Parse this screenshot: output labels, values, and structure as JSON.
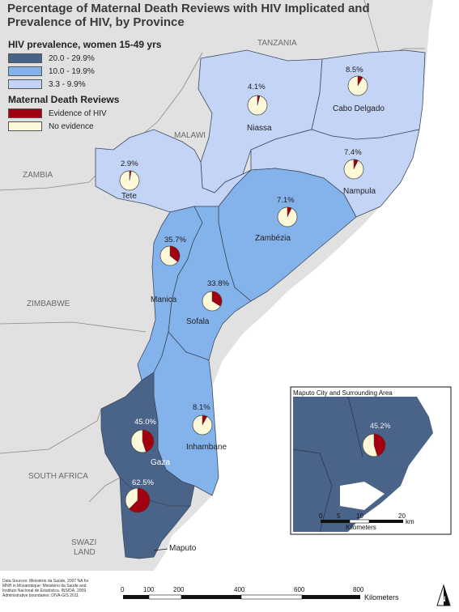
{
  "title": "Percentage of Maternal Death Reviews with HIV Implicated and Prevalence of HIV, by Province",
  "legend": {
    "hiv_heading": "HIV prevalence, women 15-49 yrs",
    "hiv_classes": [
      {
        "label": "20.0 - 29.9%",
        "color": "#4a6389"
      },
      {
        "label": "10.0 -  19.9%",
        "color": "#84b2ea"
      },
      {
        "label": "3.3 - 9.9%",
        "color": "#c4d4f6"
      }
    ],
    "mdr_heading": "Maternal Death Reviews",
    "mdr_classes": [
      {
        "label": "Evidence of HIV",
        "color": "#a0000f"
      },
      {
        "label": "No evidence",
        "color": "#fdf8d8"
      }
    ]
  },
  "countries": {
    "tanzania": "TANZANIA",
    "malawi": "MALAWI",
    "zambia": "ZAMBIA",
    "zimbabwe": "ZIMBABWE",
    "south_africa": "SOUTH AFRICA",
    "swazi": "SWAZI",
    "land": "LAND"
  },
  "provinces": [
    {
      "name": "Niassa",
      "percent": 4.1,
      "percent_label": "4.1%",
      "hiv_class": "3.3 - 9.9%"
    },
    {
      "name": "Cabo Delgado",
      "percent": 8.5,
      "percent_label": "8.5%",
      "hiv_class": "3.3 - 9.9%"
    },
    {
      "name": "Nampula",
      "percent": 7.4,
      "percent_label": "7.4%",
      "hiv_class": "3.3 - 9.9%"
    },
    {
      "name": "Tete",
      "percent": 2.9,
      "percent_label": "2.9%",
      "hiv_class": "3.3 - 9.9%"
    },
    {
      "name": "Zambézia",
      "percent": 7.1,
      "percent_label": "7.1%",
      "hiv_class": "10.0 -  19.9%"
    },
    {
      "name": "Manica",
      "percent": 35.7,
      "percent_label": "35.7%",
      "hiv_class": "10.0 -  19.9%"
    },
    {
      "name": "Sofala",
      "percent": 33.8,
      "percent_label": "33.8%",
      "hiv_class": "10.0 -  19.9%"
    },
    {
      "name": "Inhambane",
      "percent": 8.1,
      "percent_label": "8.1%",
      "hiv_class": "10.0 -  19.9%"
    },
    {
      "name": "Gaza",
      "percent": 45.0,
      "percent_label": "45.0%",
      "hiv_class": "20.0 - 29.9%"
    },
    {
      "name": "Maputo",
      "percent": 62.5,
      "percent_label": "62.5%",
      "hiv_class": "20.0 - 29.9%"
    }
  ],
  "inset": {
    "title": "Maputo City and Surrounding Area",
    "percent": 45.2,
    "percent_label": "45.2%",
    "scale_ticks": [
      "0",
      "5",
      "10",
      "20"
    ],
    "scale_unit": "km",
    "scale_caption": "Kilometers"
  },
  "scale": {
    "ticks": [
      "0",
      "100",
      "200",
      "400",
      "600",
      "800"
    ],
    "unit": "Kilometers"
  },
  "north_label": "N",
  "sources": "Data Sources:\nMinistério da Saúde, 2007 NA for MNH in Mozambique; Ministério da Saúde and Instituto Nacional de Estatística. INSIDA. 2009. Administrative boundaries: DIVA-GIS 2011"
}
